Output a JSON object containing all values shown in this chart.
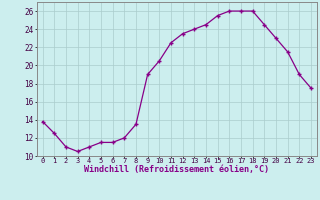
{
  "x": [
    0,
    1,
    2,
    3,
    4,
    5,
    6,
    7,
    8,
    9,
    10,
    11,
    12,
    13,
    14,
    15,
    16,
    17,
    18,
    19,
    20,
    21,
    22,
    23
  ],
  "y": [
    13.8,
    12.5,
    11.0,
    10.5,
    11.0,
    11.5,
    11.5,
    12.0,
    13.5,
    19.0,
    20.5,
    22.5,
    23.5,
    24.0,
    24.5,
    25.5,
    26.0,
    26.0,
    26.0,
    24.5,
    23.0,
    21.5,
    19.0,
    17.5
  ],
  "line_color": "#880088",
  "marker": "+",
  "xlabel": "Windchill (Refroidissement éolien,°C)",
  "ylim": [
    10,
    27
  ],
  "xlim": [
    -0.5,
    23.5
  ],
  "yticks": [
    10,
    12,
    14,
    16,
    18,
    20,
    22,
    24,
    26
  ],
  "xticks": [
    0,
    1,
    2,
    3,
    4,
    5,
    6,
    7,
    8,
    9,
    10,
    11,
    12,
    13,
    14,
    15,
    16,
    17,
    18,
    19,
    20,
    21,
    22,
    23
  ],
  "background_color": "#cceeee",
  "grid_color": "#aacccc"
}
